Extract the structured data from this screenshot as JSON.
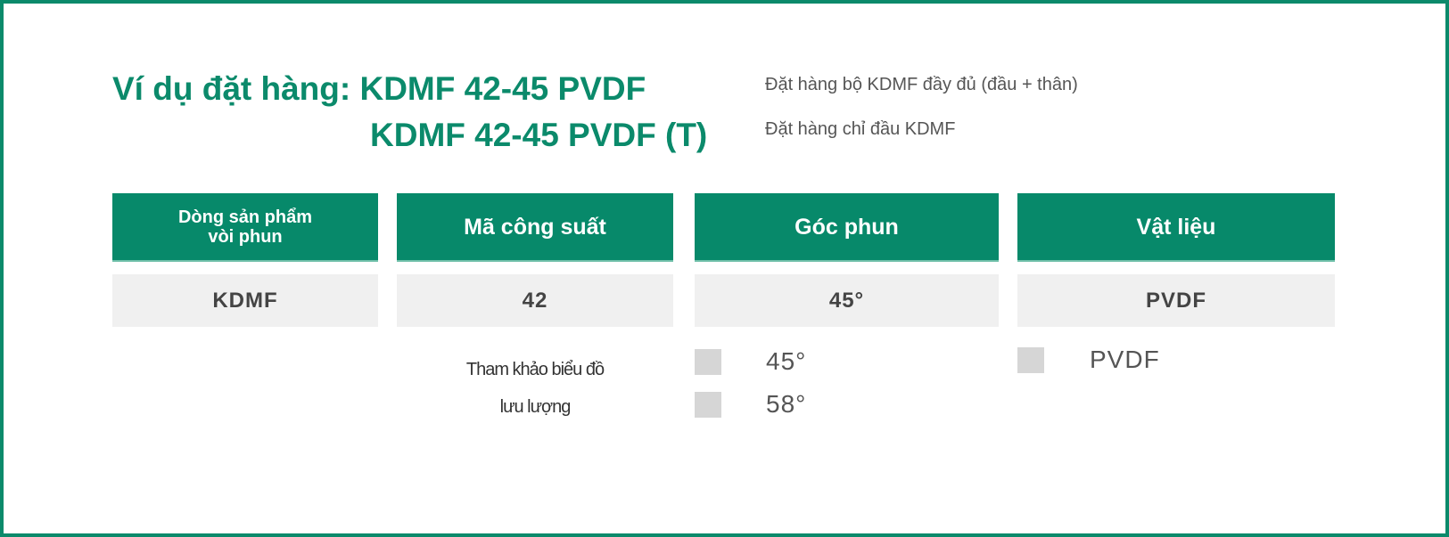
{
  "order_example": {
    "label_line1": "Ví dụ đặt hàng: KDMF 42-45 PVDF",
    "line2": "KDMF 42-45 PVDF (T)",
    "note1": "Đặt hàng bộ KDMF đầy đủ (đầu + thân)",
    "note2": "Đặt hàng chỉ đầu KDMF"
  },
  "table": {
    "headers": [
      "Dòng sản phẩm vòi phun",
      "Mã công suất",
      "Góc phun",
      "Vật liệu"
    ],
    "header_lines": [
      "Dòng sản phẩm",
      "vòi phun"
    ],
    "values": [
      "KDMF",
      "42",
      "45°",
      "PVDF"
    ]
  },
  "options": {
    "capacity_ref_line1": "Tham khảo biểu đồ",
    "capacity_ref_line2": "lưu lượng",
    "angles": [
      "45°",
      "58°"
    ],
    "materials": [
      "PVDF"
    ]
  },
  "colors": {
    "accent": "#07896a",
    "cell_bg": "#f0f0f0",
    "swatch": "#d6d6d6"
  }
}
